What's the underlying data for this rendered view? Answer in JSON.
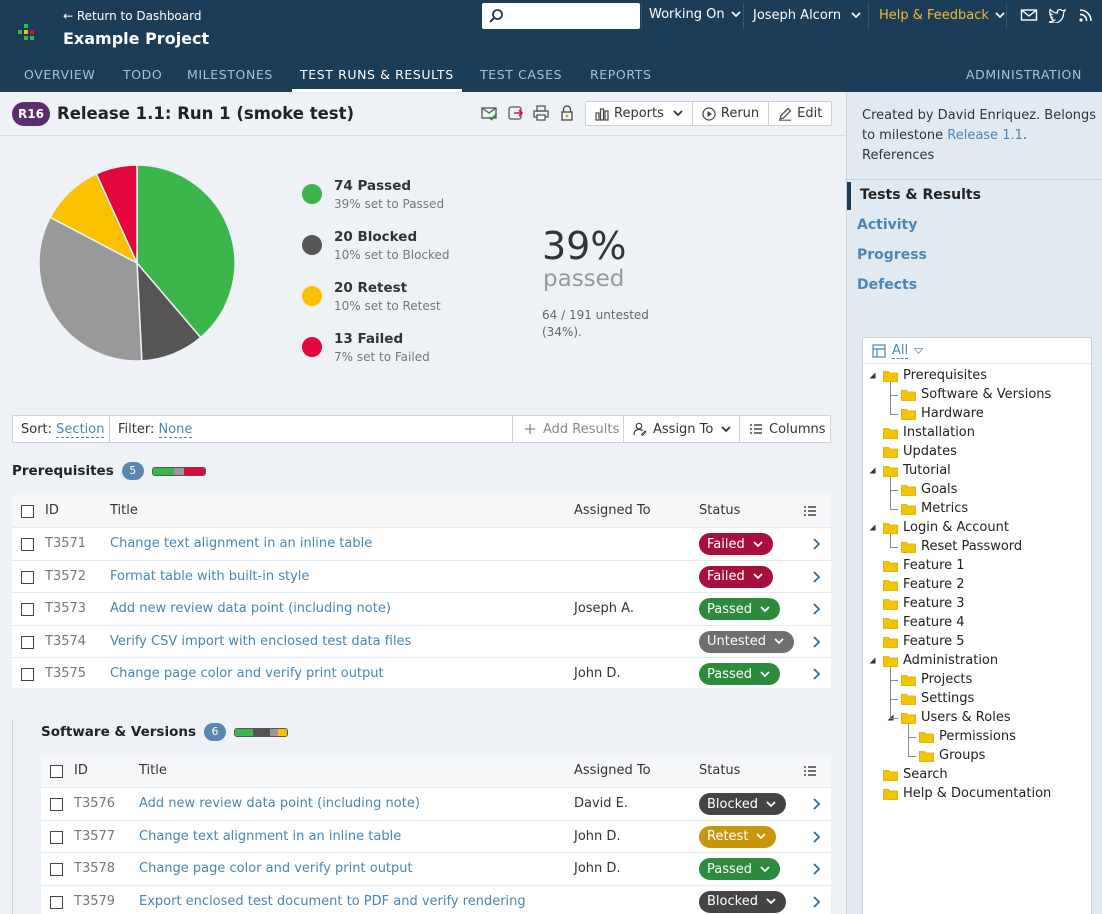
{
  "app": {
    "back_link": "← Return to Dashboard",
    "project": "Example Project",
    "search_placeholder": "",
    "working_on": "Working On",
    "user": "Joseph Alcorn",
    "help": "Help & Feedback",
    "nav": [
      "OVERVIEW",
      "TODO",
      "MILESTONES",
      "TEST RUNS & RESULTS",
      "TEST CASES",
      "REPORTS"
    ],
    "admin": "ADMINISTRATION"
  },
  "run": {
    "badge": "R16",
    "title": "Release 1.1: Run 1 (smoke test)",
    "reports": "Reports",
    "rerun": "Rerun",
    "edit": "Edit"
  },
  "stats": [
    {
      "title": "74 Passed",
      "sub": "39% set to Passed",
      "color": "#3cb54a"
    },
    {
      "title": "20 Blocked",
      "sub": "10% set to Blocked",
      "color": "#555555"
    },
    {
      "title": "20 Retest",
      "sub": "10% set to Retest",
      "color": "#f9c100"
    },
    {
      "title": "13 Failed",
      "sub": "7% set to Failed",
      "color": "#e3063d"
    }
  ],
  "pie": {
    "slices": [
      {
        "label": "Passed",
        "value": 74,
        "color": "#3cb54a"
      },
      {
        "label": "Blocked",
        "value": 20,
        "color": "#555555"
      },
      {
        "label": "Untested",
        "value": 64,
        "color": "#999999"
      },
      {
        "label": "Retest",
        "value": 20,
        "color": "#f9c100"
      },
      {
        "label": "Failed",
        "value": 13,
        "color": "#e3063d"
      }
    ]
  },
  "summary": {
    "percent": "39%",
    "passed_label": "passed",
    "untested": "64 / 191 untested (34%)."
  },
  "filterbar": {
    "sort_label": "Sort:",
    "sort_value": "Section",
    "filter_label": "Filter:",
    "filter_value": "None",
    "add_results": "Add Results",
    "assign_to": "Assign To",
    "columns": "Columns"
  },
  "columns": {
    "id": "ID",
    "title": "Title",
    "assigned": "Assigned To",
    "status": "Status"
  },
  "status_colors": {
    "Failed": "#a80f3c",
    "Passed": "#2e8b3d",
    "Untested": "#6f6f6f",
    "Blocked": "#444444",
    "Retest": "#c8960a"
  },
  "sections": [
    {
      "name": "Prerequisites",
      "count": "5",
      "rows": [
        {
          "id": "T3571",
          "title": "Change text alignment in an inline table",
          "assigned": "",
          "status": "Failed"
        },
        {
          "id": "T3572",
          "title": "Format table with built-in style",
          "assigned": "",
          "status": "Failed"
        },
        {
          "id": "T3573",
          "title": "Add new review data point (including note)",
          "assigned": "Joseph A.",
          "status": "Passed"
        },
        {
          "id": "T3574",
          "title": "Verify CSV import with enclosed test data files",
          "assigned": "",
          "status": "Untested"
        },
        {
          "id": "T3575",
          "title": "Change page color and verify print output",
          "assigned": "John D.",
          "status": "Passed"
        }
      ]
    },
    {
      "name": "Software & Versions",
      "count": "6",
      "rows": [
        {
          "id": "T3576",
          "title": "Add new review data point (including note)",
          "assigned": "David E.",
          "status": "Blocked"
        },
        {
          "id": "T3577",
          "title": "Change text alignment in an inline table",
          "assigned": "John D.",
          "status": "Retest"
        },
        {
          "id": "T3578",
          "title": "Change page color and verify print output",
          "assigned": "John D.",
          "status": "Passed"
        },
        {
          "id": "T3579",
          "title": "Export enclosed test document to PDF and verify rendering",
          "assigned": "",
          "status": "Blocked"
        }
      ]
    }
  ],
  "sidebar": {
    "info_prefix": "Created by David Enriquez. Belongs to milestone ",
    "milestone": "Release 1.1",
    "info_suffix": ".",
    "references": "References",
    "nav": [
      "Tests & Results",
      "Activity",
      "Progress",
      "Defects"
    ],
    "tree_filter": "All",
    "tree": [
      {
        "label": "Prerequisites",
        "level": 0,
        "expanded": true
      },
      {
        "label": "Software & Versions",
        "level": 1
      },
      {
        "label": "Hardware",
        "level": 1
      },
      {
        "label": "Installation",
        "level": 0
      },
      {
        "label": "Updates",
        "level": 0
      },
      {
        "label": "Tutorial",
        "level": 0,
        "expanded": true
      },
      {
        "label": "Goals",
        "level": 1
      },
      {
        "label": "Metrics",
        "level": 1
      },
      {
        "label": "Login & Account",
        "level": 0,
        "expanded": true
      },
      {
        "label": "Reset Password",
        "level": 1
      },
      {
        "label": "Feature 1",
        "level": 0
      },
      {
        "label": "Feature 2",
        "level": 0
      },
      {
        "label": "Feature 3",
        "level": 0
      },
      {
        "label": "Feature 4",
        "level": 0
      },
      {
        "label": "Feature 5",
        "level": 0
      },
      {
        "label": "Administration",
        "level": 0,
        "expanded": true
      },
      {
        "label": "Projects",
        "level": 1
      },
      {
        "label": "Settings",
        "level": 1
      },
      {
        "label": "Users & Roles",
        "level": 1,
        "expanded": true
      },
      {
        "label": "Permissions",
        "level": 2
      },
      {
        "label": "Groups",
        "level": 2
      },
      {
        "label": "Search",
        "level": 0
      },
      {
        "label": "Help & Documentation",
        "level": 0
      }
    ]
  }
}
